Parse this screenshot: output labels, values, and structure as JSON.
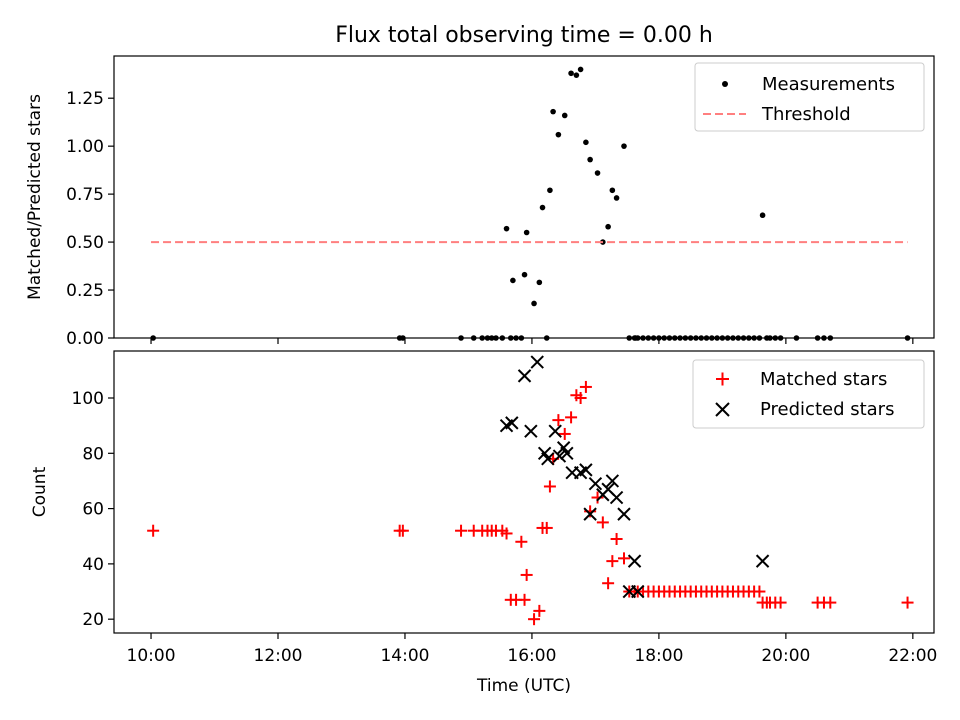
{
  "chart_data": [
    {
      "type": "scatter",
      "title": "Flux total observing time = 0.00 h",
      "ylabel": "Matched/Predicted stars",
      "xlabel": "",
      "ylim": [
        0,
        1.47
      ],
      "yticks": [
        "0.00",
        "0.25",
        "0.50",
        "0.75",
        "1.00",
        "1.25"
      ],
      "ytick_values": [
        0,
        0.25,
        0.5,
        0.75,
        1.0,
        1.25
      ],
      "legend": {
        "placement": "top-right",
        "entries": [
          "Measurements",
          "Threshold"
        ]
      },
      "series": [
        {
          "name": "Measurements",
          "marker": "dot",
          "color": "#000000",
          "x": [
            "10:02",
            "13:55",
            "13:58",
            "14:53",
            "15:05",
            "15:13",
            "15:18",
            "15:22",
            "15:26",
            "15:32",
            "15:36",
            "15:40",
            "15:42",
            "15:45",
            "15:50",
            "15:53",
            "15:55",
            "16:02",
            "16:07",
            "16:10",
            "16:14",
            "16:17",
            "16:20",
            "16:25",
            "16:31",
            "16:37",
            "16:42",
            "16:46",
            "16:51",
            "16:55",
            "17:02",
            "17:07",
            "17:12",
            "17:16",
            "17:20",
            "17:27",
            "17:32",
            "17:37",
            "17:38",
            "17:40",
            "17:45",
            "17:50",
            "17:55",
            "18:00",
            "18:05",
            "18:10",
            "18:15",
            "18:20",
            "18:25",
            "18:30",
            "18:35",
            "18:40",
            "18:45",
            "18:50",
            "18:55",
            "19:00",
            "19:05",
            "19:10",
            "19:15",
            "19:20",
            "19:25",
            "19:30",
            "19:35",
            "19:38",
            "19:42",
            "19:45",
            "19:50",
            "19:55",
            "20:10",
            "20:30",
            "20:36",
            "20:42",
            "21:55"
          ],
          "y": [
            0,
            0,
            0,
            0,
            0,
            0,
            0,
            0,
            0,
            0,
            0.57,
            0,
            0.3,
            0,
            0,
            0.33,
            0.55,
            0.18,
            0.29,
            0.68,
            0,
            0.77,
            1.18,
            1.06,
            1.16,
            1.38,
            1.37,
            1.4,
            1.02,
            0.93,
            0.86,
            0.5,
            0.58,
            0.77,
            0.73,
            1.0,
            0,
            0,
            0,
            0,
            0,
            0,
            0,
            0,
            0,
            0,
            0,
            0,
            0,
            0,
            0,
            0,
            0,
            0,
            0,
            0,
            0,
            0,
            0,
            0,
            0,
            0,
            0,
            0.64,
            0,
            0,
            0,
            0,
            0,
            0,
            0,
            0,
            0
          ]
        },
        {
          "name": "Threshold",
          "line": "dashed",
          "color": "#ff7f7f",
          "x": [
            "10:00",
            "21:55"
          ],
          "y": [
            0.5,
            0.5
          ]
        }
      ]
    },
    {
      "type": "scatter",
      "title": "",
      "ylabel": "Count",
      "xlabel": "Time (UTC)",
      "ylim": [
        15,
        117
      ],
      "yticks": [
        "20",
        "40",
        "60",
        "80",
        "100"
      ],
      "ytick_values": [
        20,
        40,
        60,
        80,
        100
      ],
      "xlim": [
        "09:25",
        "22:20"
      ],
      "xticks": [
        "10:00",
        "12:00",
        "14:00",
        "16:00",
        "18:00",
        "20:00",
        "22:00"
      ],
      "legend": {
        "placement": "top-right",
        "entries": [
          "Matched stars",
          "Predicted stars"
        ]
      },
      "series": [
        {
          "name": "Matched stars",
          "marker": "plus",
          "color": "#ff0000",
          "x": [
            "10:02",
            "13:55",
            "13:58",
            "14:53",
            "15:05",
            "15:13",
            "15:18",
            "15:22",
            "15:26",
            "15:32",
            "15:36",
            "15:40",
            "15:45",
            "15:53",
            "15:55",
            "15:50",
            "16:02",
            "16:07",
            "16:10",
            "16:14",
            "16:17",
            "16:20",
            "16:25",
            "16:31",
            "16:37",
            "16:42",
            "16:46",
            "16:51",
            "16:55",
            "17:02",
            "17:07",
            "17:12",
            "17:16",
            "17:20",
            "17:27",
            "17:32",
            "17:37",
            "17:40",
            "17:45",
            "17:50",
            "17:55",
            "18:00",
            "18:05",
            "18:10",
            "18:15",
            "18:20",
            "18:25",
            "18:30",
            "18:35",
            "18:40",
            "18:45",
            "18:50",
            "18:55",
            "19:00",
            "19:05",
            "19:10",
            "19:15",
            "19:20",
            "19:25",
            "19:30",
            "19:35",
            "19:38",
            "19:42",
            "19:45",
            "19:50",
            "19:55",
            "20:30",
            "20:36",
            "20:42",
            "21:55"
          ],
          "y": [
            52,
            52,
            52,
            52,
            52,
            52,
            52,
            52,
            52,
            52,
            51,
            27,
            27,
            27,
            36,
            48,
            20,
            23,
            53,
            53,
            68,
            78,
            92,
            87,
            93,
            101,
            100,
            104,
            59,
            64,
            55,
            33,
            41,
            49,
            42,
            30,
            30,
            30,
            30,
            30,
            30,
            30,
            30,
            30,
            30,
            30,
            30,
            30,
            30,
            30,
            30,
            30,
            30,
            30,
            30,
            30,
            30,
            30,
            30,
            30,
            30,
            26,
            26,
            26,
            26,
            26,
            26,
            26,
            26,
            26
          ]
        },
        {
          "name": "Predicted stars",
          "marker": "x",
          "color": "#000000",
          "x": [
            "15:36",
            "15:41",
            "15:53",
            "15:59",
            "16:05",
            "16:12",
            "16:15",
            "16:22",
            "16:26",
            "16:30",
            "16:33",
            "16:38",
            "16:46",
            "16:51",
            "16:55",
            "17:00",
            "17:07",
            "17:12",
            "17:16",
            "17:20",
            "17:27",
            "17:32",
            "17:37",
            "17:40",
            "19:38"
          ],
          "y": [
            90,
            91,
            108,
            88,
            113,
            80,
            78,
            88,
            79,
            82,
            80,
            73,
            73,
            74,
            58,
            69,
            65,
            67,
            70,
            64,
            58,
            30,
            41,
            30,
            41
          ]
        }
      ]
    }
  ]
}
